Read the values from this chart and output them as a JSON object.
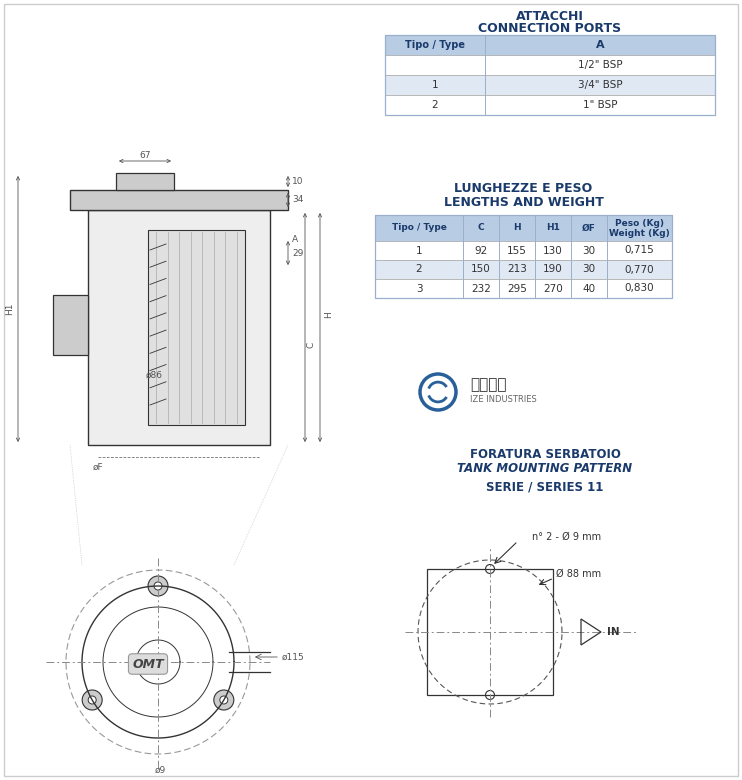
{
  "bg_color": "#ffffff",
  "title_color": "#1a3a6b",
  "header_bg": "#b8cce4",
  "row_alt_bg": "#e0e8f4",
  "row_white_bg": "#ffffff",
  "border_color": "#888888",
  "text_color": "#333333",
  "drawing_color": "#333333",
  "table1_title_line1": "ATTACCHI",
  "table1_title_line2": "CONNECTION PORTS",
  "table1_headers": [
    "Tipo / Type",
    "A"
  ],
  "table1_rows": [
    [
      "",
      "1/2\" BSP"
    ],
    [
      "1",
      "3/4\" BSP"
    ],
    [
      "2",
      "1\" BSP"
    ]
  ],
  "table1_row_bg": [
    "#ffffff",
    "#e0e8f4",
    "#ffffff"
  ],
  "table2_title_line1": "LUNGHEZZE E PESO",
  "table2_title_line2": "LENGTHS AND WEIGHT",
  "table2_headers": [
    "Tipo / Type",
    "C",
    "H",
    "H1",
    "ØF",
    "Peso (Kg)\nWeight (Kg)"
  ],
  "table2_rows": [
    [
      "1",
      "92",
      "155",
      "130",
      "30",
      "0,715"
    ],
    [
      "2",
      "150",
      "213",
      "190",
      "30",
      "0,770"
    ],
    [
      "3",
      "232",
      "295",
      "270",
      "40",
      "0,830"
    ]
  ],
  "table2_row_bg": [
    "#ffffff",
    "#e0e8f4",
    "#ffffff"
  ],
  "foratura_line1": "FORATURA SERBATOIO",
  "foratura_line2": "TANK MOUNTING PATTERN",
  "serie_line": "SERIE / SERIES 11",
  "annotation_holes": "n° 2 - Ø 9 mm",
  "annotation_circle": "Ø 88 mm",
  "annotation_in": "IN",
  "dim_67": "67",
  "dim_h1": "H1",
  "dim_10": "10",
  "dim_34": "34",
  "dim_a": "A",
  "dim_29": "29",
  "dim_h": "H",
  "dim_86": "ø86",
  "dim_c": "C",
  "dim_of": "øF",
  "dim_115": "ø115",
  "dim_9": "ø9",
  "logo_chinese": "愛澤工業",
  "logo_english": "IZE INDUSTRIES"
}
